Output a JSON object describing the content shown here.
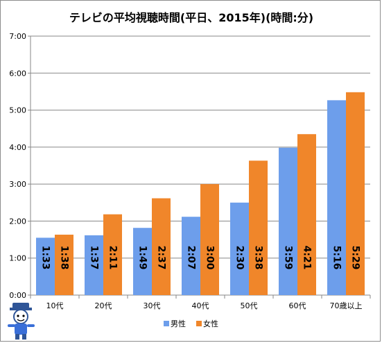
{
  "chart_data": {
    "type": "bar",
    "title": "テレビの平均視聴時間(平日、2015年)(時間:分)",
    "categories": [
      "10代",
      "20代",
      "30代",
      "40代",
      "50代",
      "60代",
      "70歳以上"
    ],
    "series": [
      {
        "name": "男性",
        "color": "#6d9eeb",
        "values": [
          93,
          97,
          109,
          127,
          150,
          239,
          316
        ],
        "labels": [
          "1:33",
          "1:37",
          "1:49",
          "2:07",
          "2:30",
          "3:59",
          "5:16"
        ]
      },
      {
        "name": "女性",
        "color": "#f0862a",
        "values": [
          98,
          131,
          157,
          180,
          218,
          261,
          329
        ],
        "labels": [
          "1:38",
          "2:11",
          "2:37",
          "3:00",
          "3:38",
          "4:21",
          "5:29"
        ]
      }
    ],
    "value_unit": "minutes",
    "ylim": [
      0,
      420
    ],
    "yticks": [
      0,
      60,
      120,
      180,
      240,
      300,
      360,
      420
    ],
    "ytick_labels": [
      "0:00",
      "1:00",
      "2:00",
      "3:00",
      "4:00",
      "5:00",
      "6:00",
      "7:00"
    ],
    "grid": true,
    "legend_position": "bottom"
  }
}
